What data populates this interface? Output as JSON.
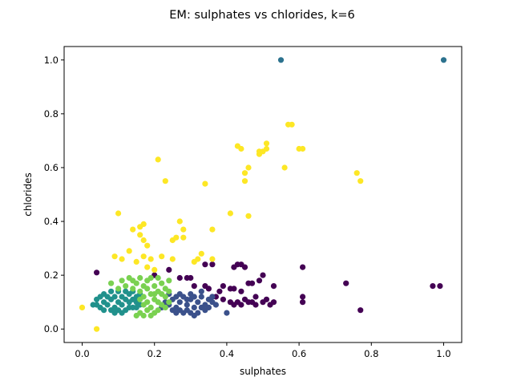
{
  "chart_data": {
    "type": "scatter",
    "title": "EM: sulphates vs chlorides, k=6",
    "xlabel": "sulphates",
    "ylabel": "chlorides",
    "xlim": [
      -0.05,
      1.05
    ],
    "ylim": [
      -0.05,
      1.05
    ],
    "xticks": [
      "0.0",
      "0.2",
      "0.4",
      "0.6",
      "0.8",
      "1.0"
    ],
    "yticks": [
      "0.0",
      "0.2",
      "0.4",
      "0.6",
      "0.8",
      "1.0"
    ],
    "grid": false,
    "legend": "none",
    "series": [
      {
        "color": "#440154",
        "points": [
          [
            0.04,
            0.21
          ],
          [
            0.2,
            0.2
          ],
          [
            0.24,
            0.22
          ],
          [
            0.27,
            0.19
          ],
          [
            0.29,
            0.19
          ],
          [
            0.3,
            0.19
          ],
          [
            0.31,
            0.16
          ],
          [
            0.34,
            0.16
          ],
          [
            0.35,
            0.15
          ],
          [
            0.34,
            0.24
          ],
          [
            0.36,
            0.24
          ],
          [
            0.39,
            0.16
          ],
          [
            0.41,
            0.15
          ],
          [
            0.42,
            0.23
          ],
          [
            0.43,
            0.24
          ],
          [
            0.44,
            0.24
          ],
          [
            0.45,
            0.23
          ],
          [
            0.42,
            0.15
          ],
          [
            0.44,
            0.14
          ],
          [
            0.46,
            0.17
          ],
          [
            0.47,
            0.17
          ],
          [
            0.49,
            0.18
          ],
          [
            0.5,
            0.2
          ],
          [
            0.53,
            0.16
          ],
          [
            0.39,
            0.11
          ],
          [
            0.41,
            0.1
          ],
          [
            0.42,
            0.09
          ],
          [
            0.44,
            0.09
          ],
          [
            0.45,
            0.11
          ],
          [
            0.46,
            0.1
          ],
          [
            0.47,
            0.1
          ],
          [
            0.48,
            0.09
          ],
          [
            0.5,
            0.1
          ],
          [
            0.51,
            0.11
          ],
          [
            0.52,
            0.09
          ],
          [
            0.53,
            0.1
          ],
          [
            0.61,
            0.23
          ],
          [
            0.61,
            0.12
          ],
          [
            0.61,
            0.1
          ],
          [
            0.73,
            0.17
          ],
          [
            0.77,
            0.07
          ],
          [
            0.97,
            0.16
          ],
          [
            0.99,
            0.16
          ],
          [
            0.36,
            0.12
          ],
          [
            0.37,
            0.12
          ],
          [
            0.48,
            0.12
          ],
          [
            0.43,
            0.1
          ],
          [
            0.38,
            0.14
          ]
        ]
      },
      {
        "color": "#3b518b",
        "points": [
          [
            0.23,
            0.1
          ],
          [
            0.24,
            0.09
          ],
          [
            0.25,
            0.11
          ],
          [
            0.26,
            0.08
          ],
          [
            0.27,
            0.1
          ],
          [
            0.28,
            0.12
          ],
          [
            0.29,
            0.09
          ],
          [
            0.3,
            0.11
          ],
          [
            0.31,
            0.08
          ],
          [
            0.32,
            0.1
          ],
          [
            0.33,
            0.12
          ],
          [
            0.34,
            0.09
          ],
          [
            0.35,
            0.11
          ],
          [
            0.26,
            0.06
          ],
          [
            0.28,
            0.06
          ],
          [
            0.3,
            0.06
          ],
          [
            0.32,
            0.06
          ],
          [
            0.34,
            0.07
          ],
          [
            0.36,
            0.1
          ],
          [
            0.37,
            0.09
          ],
          [
            0.22,
            0.08
          ],
          [
            0.24,
            0.13
          ],
          [
            0.27,
            0.13
          ],
          [
            0.3,
            0.13
          ],
          [
            0.33,
            0.14
          ],
          [
            0.31,
            0.05
          ],
          [
            0.4,
            0.06
          ],
          [
            0.29,
            0.11
          ],
          [
            0.25,
            0.07
          ],
          [
            0.35,
            0.08
          ],
          [
            0.27,
            0.07
          ],
          [
            0.33,
            0.08
          ],
          [
            0.29,
            0.07
          ],
          [
            0.31,
            0.12
          ],
          [
            0.26,
            0.12
          ],
          [
            0.36,
            0.12
          ]
        ]
      },
      {
        "color": "#2c728e",
        "points": [
          [
            0.55,
            1.0
          ],
          [
            1.0,
            1.0
          ]
        ]
      },
      {
        "color": "#21918c",
        "points": [
          [
            0.03,
            0.09
          ],
          [
            0.04,
            0.11
          ],
          [
            0.05,
            0.08
          ],
          [
            0.06,
            0.1
          ],
          [
            0.06,
            0.13
          ],
          [
            0.07,
            0.09
          ],
          [
            0.08,
            0.11
          ],
          [
            0.08,
            0.07
          ],
          [
            0.09,
            0.12
          ],
          [
            0.09,
            0.08
          ],
          [
            0.1,
            0.1
          ],
          [
            0.1,
            0.14
          ],
          [
            0.11,
            0.09
          ],
          [
            0.11,
            0.12
          ],
          [
            0.12,
            0.07
          ],
          [
            0.12,
            0.11
          ],
          [
            0.13,
            0.1
          ],
          [
            0.13,
            0.13
          ],
          [
            0.14,
            0.08
          ],
          [
            0.14,
            0.11
          ],
          [
            0.15,
            0.1
          ],
          [
            0.15,
            0.12
          ],
          [
            0.16,
            0.09
          ],
          [
            0.16,
            0.13
          ],
          [
            0.07,
            0.12
          ],
          [
            0.05,
            0.12
          ],
          [
            0.09,
            0.06
          ],
          [
            0.11,
            0.06
          ],
          [
            0.12,
            0.14
          ],
          [
            0.08,
            0.14
          ],
          [
            0.1,
            0.07
          ],
          [
            0.13,
            0.08
          ],
          [
            0.14,
            0.14
          ],
          [
            0.06,
            0.07
          ],
          [
            0.15,
            0.08
          ],
          [
            0.04,
            0.09
          ]
        ]
      },
      {
        "color": "#7ad151",
        "points": [
          [
            0.08,
            0.17
          ],
          [
            0.1,
            0.15
          ],
          [
            0.11,
            0.18
          ],
          [
            0.12,
            0.16
          ],
          [
            0.13,
            0.19
          ],
          [
            0.14,
            0.15
          ],
          [
            0.15,
            0.17
          ],
          [
            0.16,
            0.14
          ],
          [
            0.16,
            0.19
          ],
          [
            0.17,
            0.12
          ],
          [
            0.17,
            0.16
          ],
          [
            0.18,
            0.1
          ],
          [
            0.18,
            0.18
          ],
          [
            0.19,
            0.13
          ],
          [
            0.19,
            0.08
          ],
          [
            0.2,
            0.16
          ],
          [
            0.2,
            0.11
          ],
          [
            0.21,
            0.19
          ],
          [
            0.21,
            0.14
          ],
          [
            0.22,
            0.09
          ],
          [
            0.22,
            0.17
          ],
          [
            0.23,
            0.12
          ],
          [
            0.23,
            0.15
          ],
          [
            0.24,
            0.18
          ],
          [
            0.24,
            0.1
          ],
          [
            0.16,
            0.06
          ],
          [
            0.17,
            0.05
          ],
          [
            0.19,
            0.05
          ],
          [
            0.2,
            0.06
          ],
          [
            0.21,
            0.07
          ],
          [
            0.15,
            0.05
          ],
          [
            0.18,
            0.15
          ],
          [
            0.19,
            0.19
          ],
          [
            0.2,
            0.13
          ],
          [
            0.21,
            0.1
          ],
          [
            0.22,
            0.13
          ],
          [
            0.18,
            0.07
          ],
          [
            0.23,
            0.08
          ],
          [
            0.17,
            0.09
          ],
          [
            0.24,
            0.14
          ],
          [
            0.14,
            0.18
          ],
          [
            0.16,
            0.11
          ]
        ]
      },
      {
        "color": "#fde725",
        "points": [
          [
            0.0,
            0.08
          ],
          [
            0.04,
            0.0
          ],
          [
            0.09,
            0.27
          ],
          [
            0.1,
            0.43
          ],
          [
            0.11,
            0.26
          ],
          [
            0.13,
            0.29
          ],
          [
            0.14,
            0.37
          ],
          [
            0.15,
            0.25
          ],
          [
            0.16,
            0.38
          ],
          [
            0.16,
            0.35
          ],
          [
            0.17,
            0.39
          ],
          [
            0.17,
            0.33
          ],
          [
            0.17,
            0.27
          ],
          [
            0.18,
            0.31
          ],
          [
            0.18,
            0.23
          ],
          [
            0.19,
            0.26
          ],
          [
            0.2,
            0.22
          ],
          [
            0.21,
            0.63
          ],
          [
            0.22,
            0.27
          ],
          [
            0.23,
            0.55
          ],
          [
            0.25,
            0.33
          ],
          [
            0.25,
            0.26
          ],
          [
            0.26,
            0.34
          ],
          [
            0.27,
            0.4
          ],
          [
            0.28,
            0.37
          ],
          [
            0.28,
            0.34
          ],
          [
            0.31,
            0.25
          ],
          [
            0.32,
            0.26
          ],
          [
            0.33,
            0.28
          ],
          [
            0.34,
            0.54
          ],
          [
            0.36,
            0.37
          ],
          [
            0.36,
            0.26
          ],
          [
            0.41,
            0.43
          ],
          [
            0.43,
            0.68
          ],
          [
            0.44,
            0.67
          ],
          [
            0.45,
            0.58
          ],
          [
            0.45,
            0.55
          ],
          [
            0.46,
            0.6
          ],
          [
            0.46,
            0.42
          ],
          [
            0.49,
            0.65
          ],
          [
            0.49,
            0.66
          ],
          [
            0.5,
            0.66
          ],
          [
            0.51,
            0.67
          ],
          [
            0.51,
            0.69
          ],
          [
            0.56,
            0.6
          ],
          [
            0.57,
            0.76
          ],
          [
            0.58,
            0.76
          ],
          [
            0.6,
            0.67
          ],
          [
            0.61,
            0.67
          ],
          [
            0.76,
            0.58
          ],
          [
            0.77,
            0.55
          ]
        ]
      }
    ]
  }
}
